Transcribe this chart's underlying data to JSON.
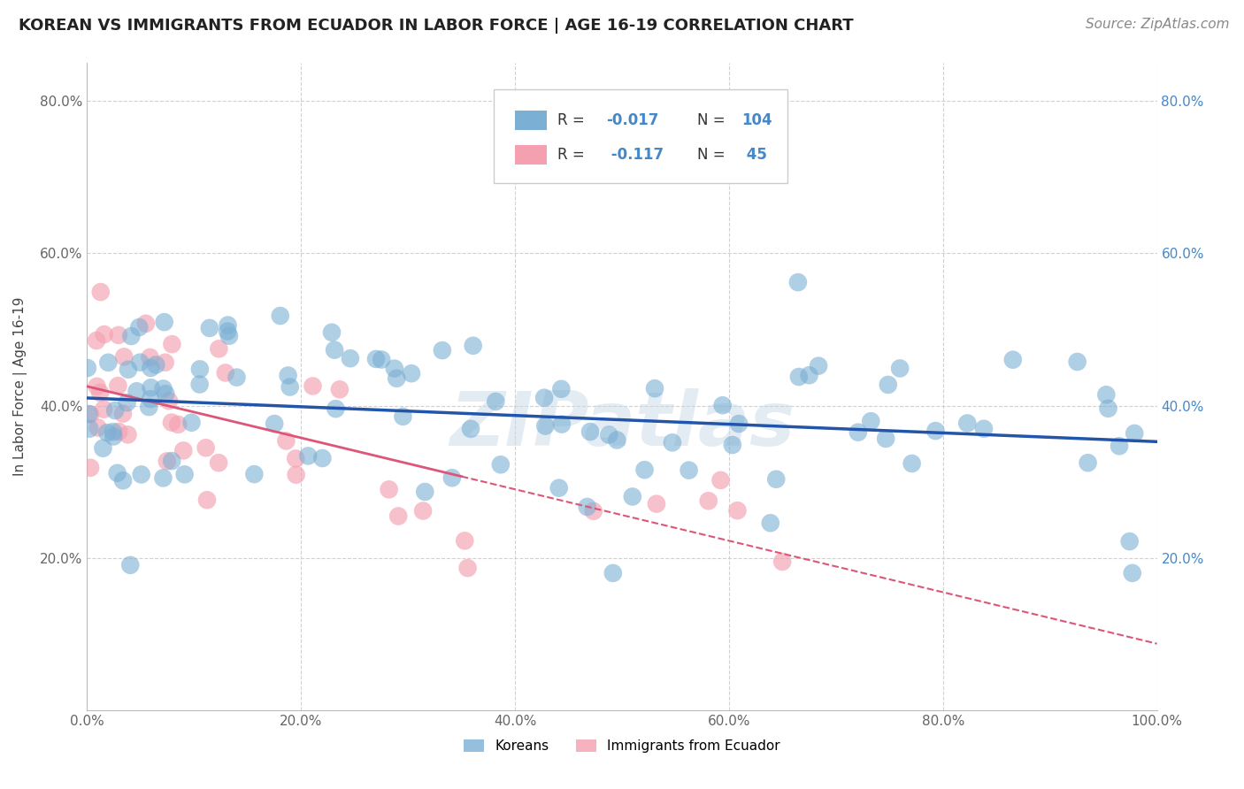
{
  "title": "KOREAN VS IMMIGRANTS FROM ECUADOR IN LABOR FORCE | AGE 16-19 CORRELATION CHART",
  "source_text": "Source: ZipAtlas.com",
  "ylabel": "In Labor Force | Age 16-19",
  "xlim": [
    0.0,
    1.0
  ],
  "ylim": [
    0.0,
    0.85
  ],
  "xticks": [
    0.0,
    0.2,
    0.4,
    0.6,
    0.8,
    1.0
  ],
  "yticks": [
    0.2,
    0.4,
    0.6,
    0.8
  ],
  "xtick_labels": [
    "0.0%",
    "20.0%",
    "40.0%",
    "60.0%",
    "80.0%",
    "100.0%"
  ],
  "ytick_labels": [
    "20.0%",
    "40.0%",
    "60.0%",
    "80.0%"
  ],
  "right_ytick_labels": [
    "20.0%",
    "40.0%",
    "60.0%",
    "80.0%"
  ],
  "legend_labels": [
    "Koreans",
    "Immigrants from Ecuador"
  ],
  "blue_color": "#7BAFD4",
  "pink_color": "#F4A0B0",
  "blue_line_color": "#2255AA",
  "pink_line_color": "#DD5577",
  "blue_r": -0.017,
  "blue_n": 104,
  "pink_r": -0.117,
  "pink_n": 45,
  "watermark": "ZIPatlas",
  "grid_color": "#CCCCCC",
  "bg_color": "#FFFFFF",
  "title_fontsize": 13,
  "label_fontsize": 11,
  "tick_fontsize": 11,
  "source_fontsize": 11,
  "right_tick_color": "#4488CC"
}
